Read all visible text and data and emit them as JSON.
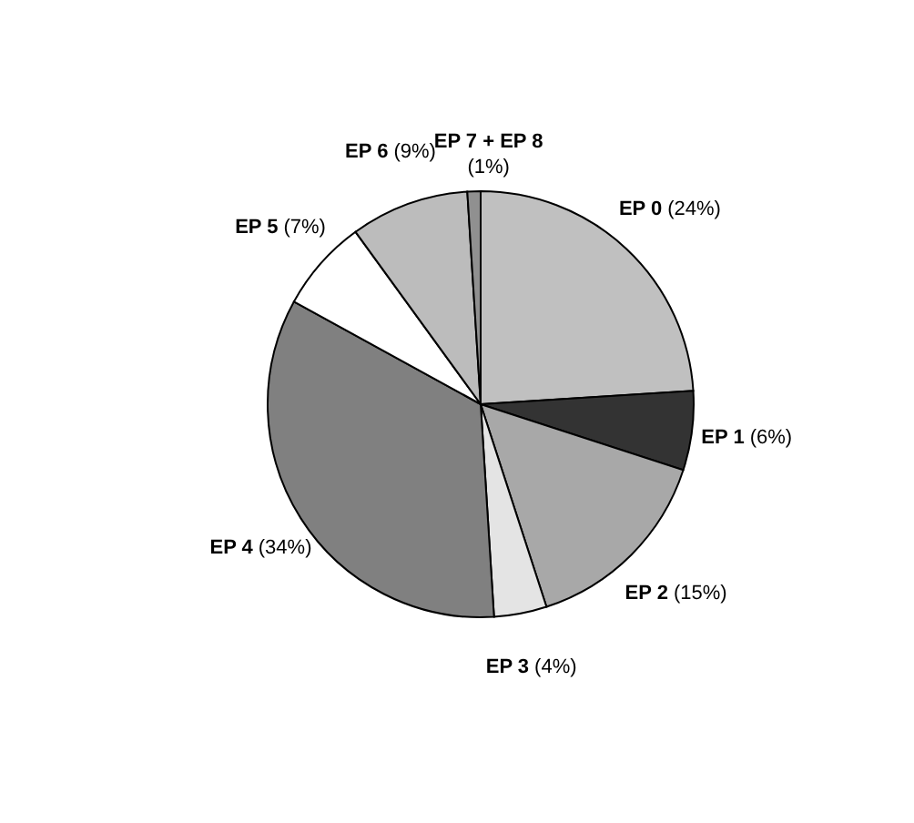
{
  "chart_data": {
    "type": "pie",
    "categories": [
      "EP 0",
      "EP 1",
      "EP 2",
      "EP 3",
      "EP 4",
      "EP 5",
      "EP 6",
      "EP 7 + EP 8"
    ],
    "values": [
      24,
      6,
      15,
      4,
      34,
      7,
      9,
      1
    ],
    "value_labels": [
      "(24%)",
      "(6%)",
      "(15%)",
      "(4%)",
      "(34%)",
      "(7%)",
      "(9%)",
      "(1%)"
    ],
    "colors": [
      "#c0c0c0",
      "#333333",
      "#a8a8a8",
      "#e4e4e4",
      "#808080",
      "#ffffff",
      "#bcbcbc",
      "#909090"
    ]
  }
}
